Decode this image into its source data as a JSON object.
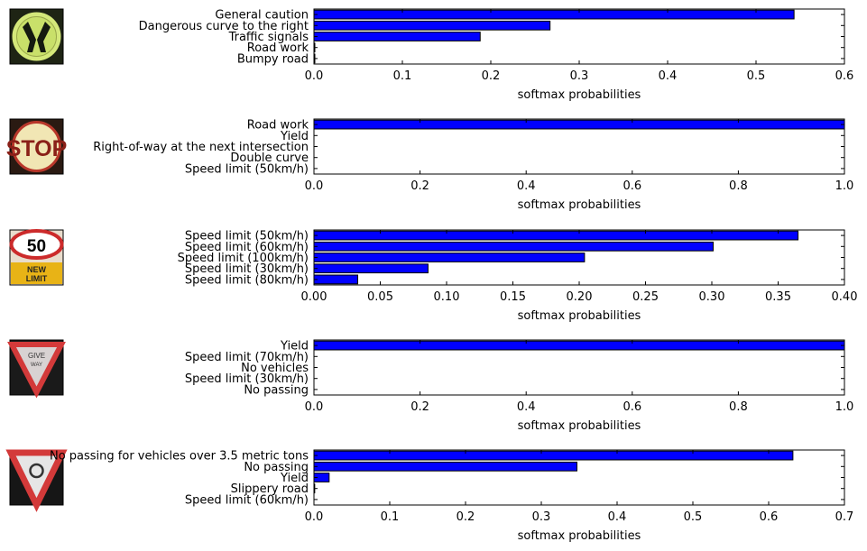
{
  "colors": {
    "bar": "#0000ff",
    "bar_edge": "#000000",
    "axes": "#000000"
  },
  "chart_data": [
    {
      "type": "bar",
      "orientation": "horizontal",
      "thumbnail_icon": "pedestrians-warning-sign-icon",
      "categories": [
        "General caution",
        "Dangerous curve to the right",
        "Traffic signals",
        "Road work",
        "Bumpy road"
      ],
      "values": [
        0.543,
        0.267,
        0.188,
        0.001,
        0.001
      ],
      "xlim": [
        0,
        0.6
      ],
      "xticks": [
        "0.0",
        "0.1",
        "0.2",
        "0.3",
        "0.4",
        "0.5",
        "0.6"
      ],
      "xlabel": "softmax probabilities"
    },
    {
      "type": "bar",
      "orientation": "horizontal",
      "thumbnail_icon": "stop-sign-icon",
      "categories": [
        "Road work",
        "Yield",
        "Right-of-way at the next intersection",
        "Double curve",
        "Speed limit (50km/h)"
      ],
      "values": [
        1.0,
        0.0,
        0.0,
        0.0,
        0.0
      ],
      "xlim": [
        0,
        1.0
      ],
      "xticks": [
        "0.0",
        "0.2",
        "0.4",
        "0.6",
        "0.8",
        "1.0"
      ],
      "xlabel": "softmax probabilities"
    },
    {
      "type": "bar",
      "orientation": "horizontal",
      "thumbnail_icon": "speed-limit-50-new-limit-sign-icon",
      "categories": [
        "Speed limit (50km/h)",
        "Speed limit (60km/h)",
        "Speed limit (100km/h)",
        "Speed limit (30km/h)",
        "Speed limit (80km/h)"
      ],
      "values": [
        0.365,
        0.301,
        0.204,
        0.086,
        0.033
      ],
      "xlim": [
        0,
        0.4
      ],
      "xticks": [
        "0.00",
        "0.05",
        "0.10",
        "0.15",
        "0.20",
        "0.25",
        "0.30",
        "0.35",
        "0.40"
      ],
      "xlabel": "softmax probabilities"
    },
    {
      "type": "bar",
      "orientation": "horizontal",
      "thumbnail_icon": "give-way-sign-icon",
      "categories": [
        "Yield",
        "Speed limit (70km/h)",
        "No vehicles",
        "Speed limit (30km/h)",
        "No passing"
      ],
      "values": [
        1.0,
        0.0,
        0.0,
        0.0,
        0.0
      ],
      "xlim": [
        0,
        1.0
      ],
      "xticks": [
        "0.0",
        "0.2",
        "0.4",
        "0.6",
        "0.8",
        "1.0"
      ],
      "xlabel": "softmax probabilities"
    },
    {
      "type": "bar",
      "orientation": "horizontal",
      "thumbnail_icon": "yield-roundabout-sign-icon",
      "categories": [
        "No passing for vehicles over 3.5 metric tons",
        "No passing",
        "Yield",
        "Slippery road",
        "Speed limit (60km/h)"
      ],
      "values": [
        0.632,
        0.347,
        0.02,
        0.001,
        0.0
      ],
      "xlim": [
        0,
        0.7
      ],
      "xticks": [
        "0.0",
        "0.1",
        "0.2",
        "0.3",
        "0.4",
        "0.5",
        "0.6",
        "0.7"
      ],
      "xlabel": "softmax probabilities"
    }
  ]
}
